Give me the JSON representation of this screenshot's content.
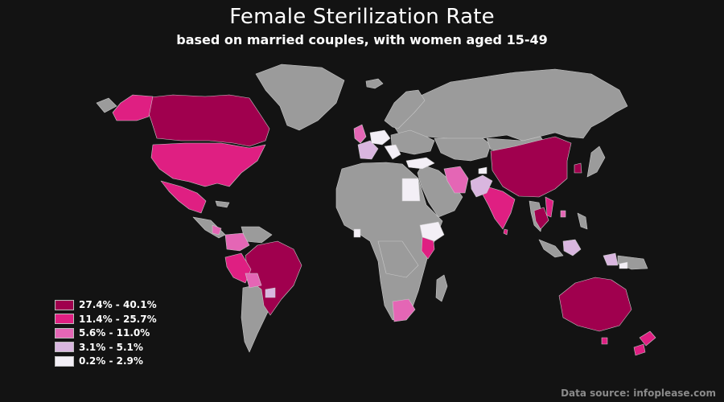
{
  "map": {
    "title": "Female Sterilization Rate",
    "subtitle": "based on married couples, with women aged 15-49",
    "source": "Data source: infoplease.com",
    "colors": {
      "background": "#131313",
      "no_data": "#9b9b9b",
      "border": "#c8c8c8"
    },
    "legend": [
      {
        "label": "27.4% - 40.1%",
        "color": "#a0004e"
      },
      {
        "label": "11.4% - 25.7%",
        "color": "#df1f82"
      },
      {
        "label": "5.6% - 11.0%",
        "color": "#e466b5"
      },
      {
        "label": "3.1% - 5.1%",
        "color": "#d9b6df"
      },
      {
        "label": "0.2% - 2.9%",
        "color": "#f3eff6"
      }
    ]
  }
}
